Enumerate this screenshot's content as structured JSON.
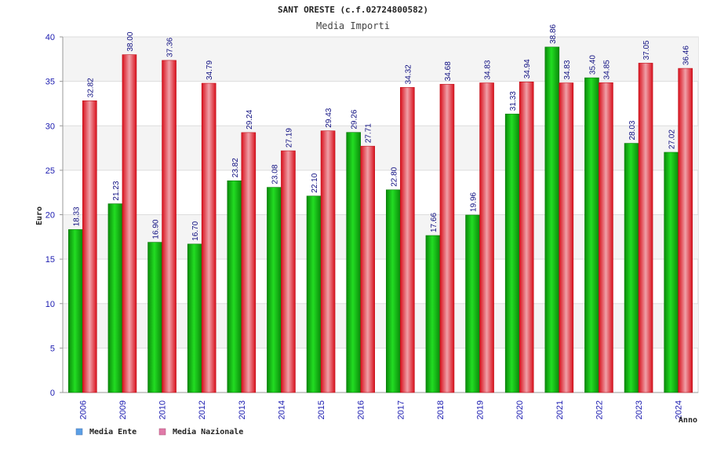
{
  "chart_data": {
    "type": "bar",
    "title": "SANT ORESTE (c.f.02724800582)",
    "subtitle": "Media Importi",
    "xlabel": "Anno",
    "ylabel": "Euro",
    "ylim": [
      0,
      40
    ],
    "yticks": [
      0,
      5,
      10,
      15,
      20,
      25,
      30,
      35,
      40
    ],
    "grid": true,
    "legend_position": "bottom-left",
    "categories": [
      "2006",
      "2009",
      "2010",
      "2012",
      "2013",
      "2014",
      "2015",
      "2016",
      "2017",
      "2018",
      "2019",
      "2020",
      "2021",
      "2022",
      "2023",
      "2024"
    ],
    "series": [
      {
        "name": "Media Ente",
        "color": "#16b216",
        "legend_color": "#5a9fe6",
        "values": [
          18.33,
          21.23,
          16.9,
          16.7,
          23.82,
          23.08,
          22.1,
          29.26,
          22.8,
          17.66,
          19.96,
          31.33,
          38.86,
          35.4,
          28.03,
          27.02
        ],
        "labels": [
          "18.33",
          "21.23",
          "16.90",
          "16.70",
          "23.82",
          "23.08",
          "22.10",
          "29.26",
          "22.80",
          "17.66",
          "19.96",
          "31.33",
          "38.86",
          "35.40",
          "28.03",
          "27.02"
        ]
      },
      {
        "name": "Media Nazionale",
        "color": "#e8202a",
        "legend_color": "#e07aa8",
        "values": [
          32.82,
          38.0,
          37.36,
          34.79,
          29.24,
          27.19,
          29.43,
          27.71,
          34.32,
          34.68,
          34.83,
          34.94,
          34.83,
          34.85,
          37.05,
          36.46
        ],
        "labels": [
          "32.82",
          "38.00",
          "37.36",
          "34.79",
          "29.24",
          "27.19",
          "29.43",
          "27.71",
          "34.32",
          "34.68",
          "34.83",
          "34.94",
          "34.83",
          "34.85",
          "37.05",
          "36.46"
        ]
      }
    ]
  }
}
